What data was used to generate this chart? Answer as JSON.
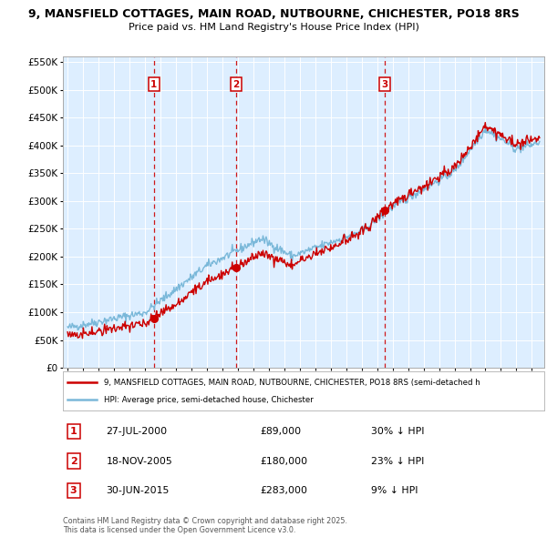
{
  "title_line1": "9, MANSFIELD COTTAGES, MAIN ROAD, NUTBOURNE, CHICHESTER, PO18 8RS",
  "title_line2": "Price paid vs. HM Land Registry's House Price Index (HPI)",
  "sales": [
    {
      "date_num": 2000.57,
      "price": 89000,
      "label": "1",
      "date_str": "27-JUL-2000"
    },
    {
      "date_num": 2005.88,
      "price": 180000,
      "label": "2",
      "date_str": "18-NOV-2005"
    },
    {
      "date_num": 2015.49,
      "price": 283000,
      "label": "3",
      "date_str": "30-JUN-2015"
    }
  ],
  "sale_prices_str": [
    "£89,000",
    "£180,000",
    "£283,000"
  ],
  "sale_pct": [
    "30% ↓ HPI",
    "23% ↓ HPI",
    "9% ↓ HPI"
  ],
  "hpi_line_color": "#7ab8d9",
  "price_line_color": "#cc0000",
  "sale_marker_color": "#cc0000",
  "dashed_line_color": "#cc0000",
  "background_plot": "#ddeeff",
  "background_fig": "#ffffff",
  "ylim": [
    0,
    560000
  ],
  "yticks": [
    0,
    50000,
    100000,
    150000,
    200000,
    250000,
    300000,
    350000,
    400000,
    450000,
    500000,
    550000
  ],
  "xlim_start": 1994.7,
  "xlim_end": 2025.8,
  "legend_property_label": "9, MANSFIELD COTTAGES, MAIN ROAD, NUTBOURNE, CHICHESTER, PO18 8RS (semi-detached h",
  "legend_hpi_label": "HPI: Average price, semi-detached house, Chichester",
  "footer1": "Contains HM Land Registry data © Crown copyright and database right 2025.",
  "footer2": "This data is licensed under the Open Government Licence v3.0.",
  "hpi_seed": 42,
  "prop_seed": 7,
  "hpi_noise_scale": 4000,
  "prop_noise_scale": 3000
}
